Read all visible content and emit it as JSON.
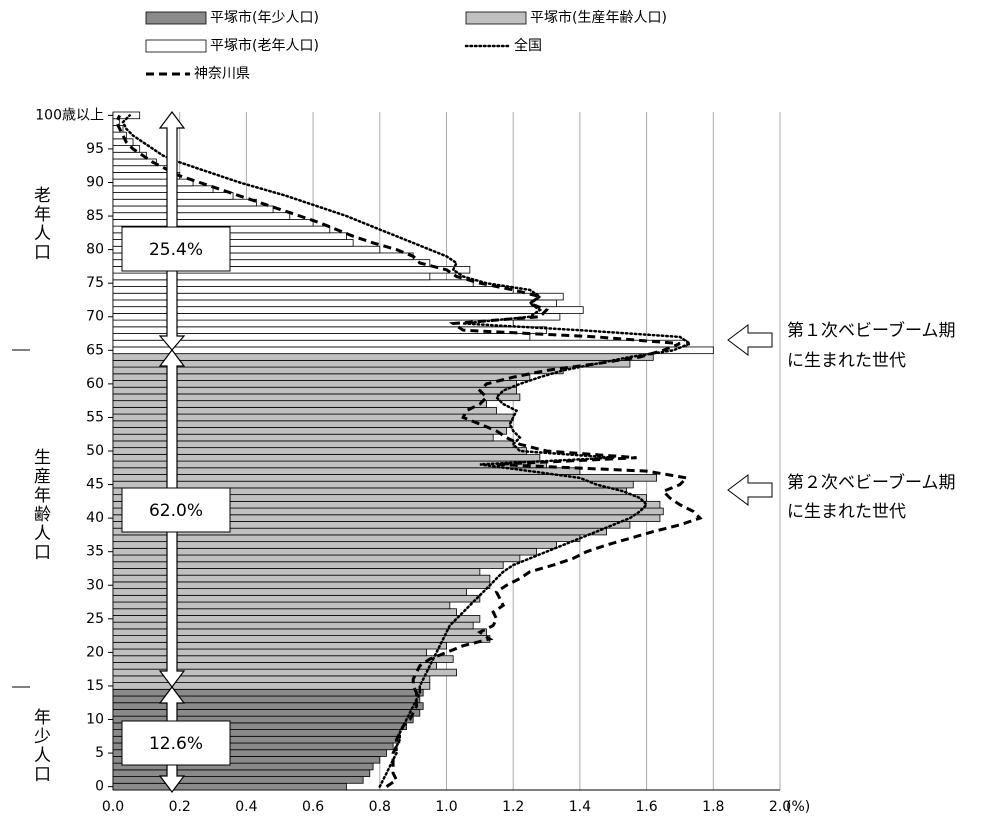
{
  "chart_data": {
    "type": "bar",
    "orientation": "horizontal",
    "x_label": "(%)",
    "xlim": [
      0,
      2
    ],
    "xticks": [
      {
        "value": 0,
        "label": "0.0"
      },
      {
        "value": 0.2,
        "label": "0.2"
      },
      {
        "value": 0.4,
        "label": "0.4"
      },
      {
        "value": 0.6,
        "label": "0.6"
      },
      {
        "value": 0.8,
        "label": "0.8"
      },
      {
        "value": 1,
        "label": "1.0"
      },
      {
        "value": 1.2,
        "label": "1.2"
      },
      {
        "value": 1.4,
        "label": "1.4"
      },
      {
        "value": 1.6,
        "label": "1.6"
      },
      {
        "value": 1.8,
        "label": "1.8"
      },
      {
        "value": 2,
        "label": "2.0"
      }
    ],
    "ylim": [
      -0.5,
      100.5
    ],
    "yticks": [
      0,
      5,
      10,
      15,
      20,
      25,
      30,
      35,
      40,
      45,
      50,
      55,
      60,
      65,
      70,
      75,
      80,
      85,
      90,
      95,
      {
        "value": 100,
        "label": "100歳以上"
      }
    ],
    "grid": true,
    "y": [
      0,
      1,
      2,
      3,
      4,
      5,
      6,
      7,
      8,
      9,
      10,
      11,
      12,
      13,
      14,
      15,
      16,
      17,
      18,
      19,
      20,
      21,
      22,
      23,
      24,
      25,
      26,
      27,
      28,
      29,
      30,
      31,
      32,
      33,
      34,
      35,
      36,
      37,
      38,
      39,
      40,
      41,
      42,
      43,
      44,
      45,
      46,
      47,
      48,
      49,
      50,
      51,
      52,
      53,
      54,
      55,
      56,
      57,
      58,
      59,
      60,
      61,
      62,
      63,
      64,
      65,
      66,
      67,
      68,
      69,
      70,
      71,
      72,
      73,
      74,
      75,
      76,
      77,
      78,
      79,
      80,
      81,
      82,
      83,
      84,
      85,
      86,
      87,
      88,
      89,
      90,
      91,
      92,
      93,
      94,
      95,
      96,
      97,
      98,
      99,
      100
    ],
    "series": [
      {
        "name": "平塚市(年少人口)",
        "kind": "bar",
        "color": "#8a8a8a",
        "values": [
          0.7,
          0.75,
          0.77,
          0.78,
          0.8,
          0.82,
          0.84,
          0.86,
          0.86,
          0.88,
          0.9,
          0.92,
          0.93,
          0.92,
          0.93,
          null,
          null,
          null,
          null,
          null,
          null,
          null,
          null,
          null,
          null,
          null,
          null,
          null,
          null,
          null,
          null,
          null,
          null,
          null,
          null,
          null,
          null,
          null,
          null,
          null,
          null,
          null,
          null,
          null,
          null,
          null,
          null,
          null,
          null,
          null,
          null,
          null,
          null,
          null,
          null,
          null,
          null,
          null,
          null,
          null,
          null,
          null,
          null,
          null,
          null,
          null,
          null,
          null,
          null,
          null,
          null,
          null,
          null,
          null,
          null,
          null,
          null,
          null,
          null,
          null,
          null,
          null,
          null,
          null,
          null,
          null,
          null,
          null,
          null,
          null,
          null,
          null,
          null,
          null,
          null,
          null,
          null,
          null,
          null,
          null,
          null
        ]
      },
      {
        "name": "平塚市(生産年齢人口)",
        "kind": "bar",
        "color": "#c0c0c0",
        "values": [
          null,
          null,
          null,
          null,
          null,
          null,
          null,
          null,
          null,
          null,
          null,
          null,
          null,
          null,
          null,
          0.95,
          0.95,
          1.03,
          0.97,
          1.02,
          0.94,
          1.0,
          1.13,
          1.12,
          1.08,
          1.1,
          1.03,
          1.01,
          1.1,
          1.06,
          1.13,
          1.13,
          1.1,
          1.17,
          1.22,
          1.27,
          1.33,
          1.4,
          1.48,
          1.55,
          1.64,
          1.65,
          1.64,
          1.6,
          1.54,
          1.56,
          1.63,
          1.4,
          1.3,
          1.28,
          1.24,
          1.2,
          1.14,
          1.18,
          1.19,
          1.2,
          1.15,
          1.12,
          1.22,
          1.21,
          1.21,
          1.25,
          1.35,
          1.55,
          1.62,
          null,
          null,
          null,
          null,
          null,
          null,
          null,
          null,
          null,
          null,
          null,
          null,
          null,
          null,
          null,
          null,
          null,
          null,
          null,
          null,
          null,
          null,
          null,
          null,
          null,
          null,
          null,
          null,
          null,
          null,
          null,
          null,
          null,
          null,
          null,
          null
        ]
      },
      {
        "name": "平塚市(老年人口)",
        "kind": "bar",
        "color": "#ffffff",
        "values": [
          null,
          null,
          null,
          null,
          null,
          null,
          null,
          null,
          null,
          null,
          null,
          null,
          null,
          null,
          null,
          null,
          null,
          null,
          null,
          null,
          null,
          null,
          null,
          null,
          null,
          null,
          null,
          null,
          null,
          null,
          null,
          null,
          null,
          null,
          null,
          null,
          null,
          null,
          null,
          null,
          null,
          null,
          null,
          null,
          null,
          null,
          null,
          null,
          null,
          null,
          null,
          null,
          null,
          null,
          null,
          null,
          null,
          null,
          null,
          null,
          null,
          null,
          null,
          null,
          null,
          1.8,
          1.72,
          1.25,
          1.3,
          1.2,
          1.34,
          1.41,
          1.33,
          1.35,
          1.2,
          1.08,
          0.95,
          1.07,
          0.95,
          0.9,
          0.8,
          0.72,
          0.7,
          0.65,
          0.6,
          0.53,
          0.48,
          0.43,
          0.36,
          0.3,
          0.24,
          0.2,
          0.17,
          0.13,
          0.1,
          0.08,
          0.06,
          0.04,
          0.03,
          0.02,
          0.08
        ]
      },
      {
        "name": "全国",
        "kind": "line",
        "dash": "dotted",
        "color": "#000000",
        "values": [
          0.8,
          0.81,
          0.82,
          0.83,
          0.84,
          0.85,
          0.85,
          0.86,
          0.86,
          0.87,
          0.88,
          0.89,
          0.9,
          0.91,
          0.92,
          0.92,
          0.93,
          0.94,
          0.95,
          0.96,
          0.97,
          0.98,
          0.99,
          1.0,
          1.01,
          1.03,
          1.05,
          1.07,
          1.09,
          1.11,
          1.13,
          1.15,
          1.17,
          1.2,
          1.25,
          1.3,
          1.35,
          1.4,
          1.45,
          1.5,
          1.55,
          1.58,
          1.6,
          1.58,
          1.53,
          1.45,
          1.4,
          1.25,
          1.1,
          1.5,
          1.22,
          1.2,
          1.22,
          1.2,
          1.19,
          1.2,
          1.21,
          1.17,
          1.15,
          1.17,
          1.22,
          1.28,
          1.35,
          1.45,
          1.55,
          1.68,
          1.73,
          1.7,
          1.4,
          1.05,
          1.25,
          1.28,
          1.25,
          1.28,
          1.25,
          1.12,
          1.05,
          1.02,
          1.03,
          1.0,
          0.95,
          0.9,
          0.85,
          0.8,
          0.75,
          0.7,
          0.64,
          0.58,
          0.52,
          0.45,
          0.38,
          0.32,
          0.26,
          0.2,
          0.15,
          0.12,
          0.09,
          0.06,
          0.04,
          0.03,
          0.05
        ]
      },
      {
        "name": "神奈川県",
        "kind": "line",
        "dash": "dashed",
        "color": "#000000",
        "values": [
          0.82,
          0.85,
          0.84,
          0.84,
          0.84,
          0.84,
          0.85,
          0.85,
          0.86,
          0.87,
          0.89,
          0.9,
          0.91,
          0.91,
          0.91,
          0.9,
          0.9,
          0.91,
          0.92,
          0.95,
          1.0,
          1.05,
          1.13,
          1.1,
          1.14,
          1.15,
          1.14,
          1.17,
          1.16,
          1.15,
          1.18,
          1.22,
          1.25,
          1.32,
          1.38,
          1.42,
          1.48,
          1.55,
          1.62,
          1.7,
          1.76,
          1.74,
          1.7,
          1.67,
          1.65,
          1.7,
          1.72,
          1.6,
          1.15,
          1.57,
          1.3,
          1.22,
          1.18,
          1.15,
          1.1,
          1.05,
          1.06,
          1.1,
          1.12,
          1.1,
          1.12,
          1.2,
          1.3,
          1.45,
          1.58,
          1.65,
          1.7,
          1.45,
          1.05,
          1.02,
          1.28,
          1.3,
          1.25,
          1.28,
          1.2,
          1.1,
          1.03,
          1.0,
          0.92,
          0.9,
          0.85,
          0.78,
          0.72,
          0.67,
          0.62,
          0.56,
          0.5,
          0.44,
          0.38,
          0.32,
          0.26,
          0.2,
          0.16,
          0.12,
          0.09,
          0.06,
          0.04,
          0.03,
          0.02,
          0.01,
          0.02
        ]
      }
    ],
    "group_labels": [
      "老年人口",
      "生産年齢人口",
      "年少人口"
    ],
    "share_labels": [
      "25.4%",
      "62.0%",
      "12.6%"
    ],
    "annotations": [
      [
        "第１次ベビーブーム期",
        "に生まれた世代"
      ],
      [
        "第２次ベビーブーム期",
        "に生まれた世代"
      ]
    ]
  }
}
